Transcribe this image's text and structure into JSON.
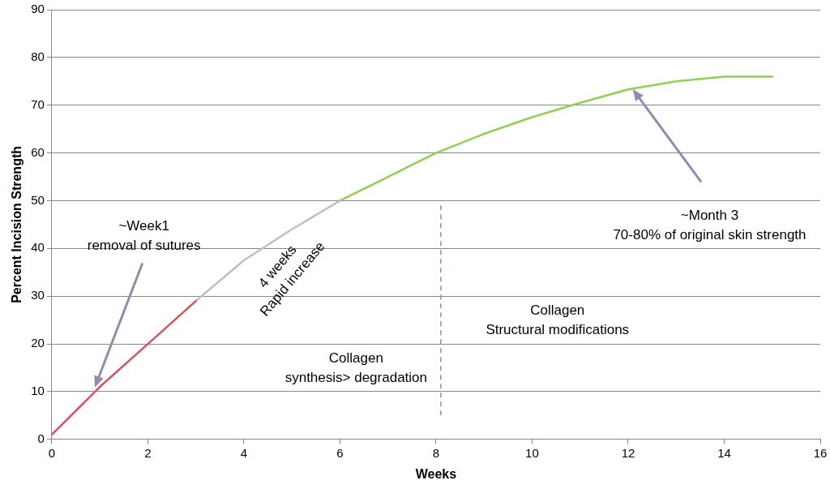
{
  "chart_data": {
    "type": "line",
    "xlabel": "Weeks",
    "ylabel": "Percent Incision Strength",
    "series": [
      {
        "x": [
          0,
          1,
          2,
          3
        ],
        "values": [
          1,
          11,
          20,
          29
        ],
        "color": "#d9545a"
      },
      {
        "x": [
          3,
          4,
          5,
          6
        ],
        "values": [
          29,
          37.5,
          44,
          50
        ],
        "color": "#c0bcc8"
      },
      {
        "x": [
          6,
          7,
          8,
          9,
          10,
          11,
          12,
          13,
          14,
          15
        ],
        "values": [
          50,
          55,
          60,
          64,
          67.5,
          70.5,
          73.3,
          75,
          76,
          76
        ],
        "color": "#92d050"
      }
    ],
    "xlim": [
      0,
      16
    ],
    "xticks": [
      0,
      2,
      4,
      6,
      8,
      10,
      12,
      14,
      16
    ],
    "ylim": [
      0,
      90
    ],
    "yticks": [
      0,
      10,
      20,
      30,
      40,
      50,
      60,
      70,
      80,
      90
    ],
    "grid": "y",
    "legend": false,
    "marker": "none",
    "line_style": "solid",
    "ref_lines": [
      {
        "axis": "x",
        "value": 8.1,
        "color": "#8a8fa8",
        "line_style": "dashed"
      }
    ],
    "annotations": [
      "~Week1\nremoval of sutures",
      "~Month 3\n70-80% of original skin strength",
      "4 weeks\nRapid increase",
      "Collagen\nsynthesis> degradation",
      "Collagen\nStructural modifications"
    ]
  }
}
